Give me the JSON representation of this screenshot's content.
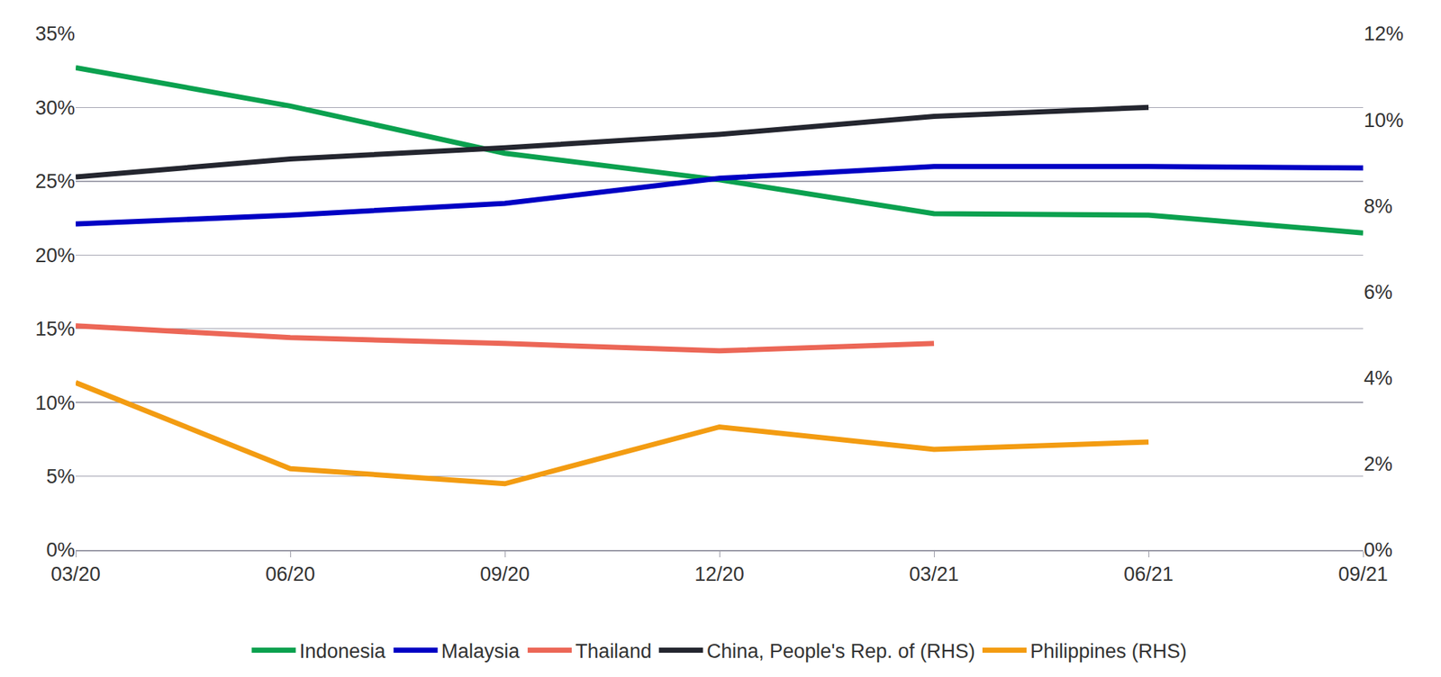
{
  "chart_data": {
    "type": "line",
    "categories": [
      "03/20",
      "06/20",
      "09/20",
      "12/20",
      "03/21",
      "06/21",
      "09/21"
    ],
    "series": [
      {
        "name": "Indonesia",
        "color": "#0ba14f",
        "values": [
          32.7,
          30.1,
          26.9,
          25.1,
          22.8,
          22.7,
          21.5
        ]
      },
      {
        "name": "Malaysia",
        "color": "#0000c4",
        "values": [
          22.1,
          22.7,
          23.5,
          25.2,
          26.0,
          26.0,
          25.9
        ]
      },
      {
        "name": "Thailand",
        "color": "#ec6757",
        "values": [
          15.2,
          14.4,
          14.0,
          13.5,
          14.0,
          null,
          null
        ]
      },
      {
        "name": "China, People's Rep. of (RHS)",
        "color": "#24262f",
        "axis": "y2",
        "values": [
          8.67,
          9.09,
          9.35,
          9.66,
          10.08,
          10.29,
          null
        ]
      },
      {
        "name": "Philippines (RHS)",
        "color": "#f39c12",
        "axis": "y2",
        "values": [
          3.89,
          1.89,
          1.54,
          2.86,
          2.34,
          2.51,
          null
        ]
      }
    ],
    "ylim": [
      0,
      35
    ],
    "yticks": [
      {
        "value": 0,
        "label": "0%"
      },
      {
        "value": 5,
        "label": "5%"
      },
      {
        "value": 10,
        "label": "10%"
      },
      {
        "value": 15,
        "label": "15%"
      },
      {
        "value": 20,
        "label": "20%"
      },
      {
        "value": 25,
        "label": "25%"
      },
      {
        "value": 30,
        "label": "30%"
      },
      {
        "value": 35,
        "label": "35%"
      }
    ],
    "y2lim": [
      0,
      12
    ],
    "y2ticks": [
      {
        "value": 0,
        "label": "0%"
      },
      {
        "value": 2,
        "label": "2%"
      },
      {
        "value": 4,
        "label": "4%"
      },
      {
        "value": 6,
        "label": "6%"
      },
      {
        "value": 8,
        "label": "8%"
      },
      {
        "value": 10,
        "label": "10%"
      },
      {
        "value": 12,
        "label": "12%"
      }
    ],
    "grid": true,
    "legend": "bottom"
  }
}
